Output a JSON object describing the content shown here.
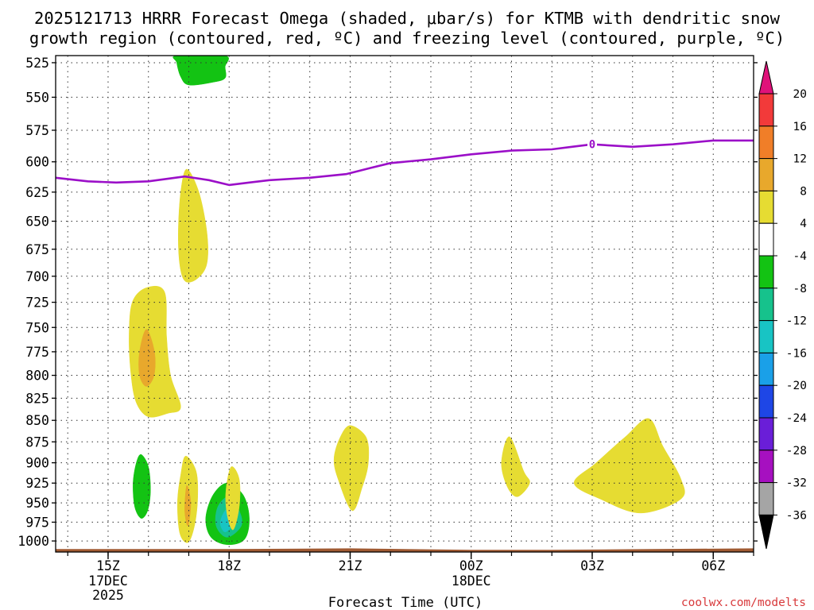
{
  "chart_data": {
    "type": "time-height cross section (shaded contour)",
    "title_line1": "2025121713 HRRR Forecast Omega (shaded, μbar/s) for KTMB with dendritic snow",
    "title_line2": "growth region (contoured, red, ºC) and freezing level (contoured, purple, ºC)",
    "xlabel": "Forecast Time (UTC)",
    "credit": "coolwx.com/modelts",
    "xlim_hours": [
      13.7,
      31.0
    ],
    "ylim_hPa": [
      1015,
      520
    ],
    "y_ticks": [
      525,
      550,
      575,
      600,
      625,
      650,
      675,
      700,
      725,
      750,
      775,
      800,
      825,
      850,
      875,
      900,
      925,
      950,
      975,
      1000
    ],
    "x_ticks": [
      {
        "hour": 15,
        "label": "15Z",
        "date_line1": "17DEC",
        "date_line2": "2025"
      },
      {
        "hour": 18,
        "label": "18Z",
        "date_line1": "",
        "date_line2": ""
      },
      {
        "hour": 21,
        "label": "21Z",
        "date_line1": "",
        "date_line2": ""
      },
      {
        "hour": 24,
        "label": "00Z",
        "date_line1": "18DEC",
        "date_line2": ""
      },
      {
        "hour": 27,
        "label": "03Z",
        "date_line1": "",
        "date_line2": ""
      },
      {
        "hour": 30,
        "label": "06Z",
        "date_line1": "",
        "date_line2": ""
      }
    ],
    "colorbar": {
      "labels": [
        "20",
        "16",
        "12",
        "8",
        "4",
        "-4",
        "-8",
        "-12",
        "-16",
        "-20",
        "-24",
        "-28",
        "-32",
        "-36"
      ],
      "bins": [
        {
          "lo": 20,
          "hi": null,
          "color": "#e0127a"
        },
        {
          "lo": 16,
          "hi": 20,
          "color": "#f23a3a"
        },
        {
          "lo": 12,
          "hi": 16,
          "color": "#f07e28"
        },
        {
          "lo": 8,
          "hi": 12,
          "color": "#e8a82c"
        },
        {
          "lo": 4,
          "hi": 8,
          "color": "#e6dc32"
        },
        {
          "lo": -4,
          "hi": 4,
          "color": "#ffffff"
        },
        {
          "lo": -8,
          "hi": -4,
          "color": "#13c313"
        },
        {
          "lo": -12,
          "hi": -8,
          "color": "#16c28c"
        },
        {
          "lo": -16,
          "hi": -12,
          "color": "#18c4c4"
        },
        {
          "lo": -20,
          "hi": -16,
          "color": "#1aa0e8"
        },
        {
          "lo": -24,
          "hi": -20,
          "color": "#1e46e6"
        },
        {
          "lo": -28,
          "hi": -24,
          "color": "#6a1ed8"
        },
        {
          "lo": -32,
          "hi": -28,
          "color": "#a610c0"
        },
        {
          "lo": -36,
          "hi": -32,
          "color": "#a5a5a5"
        },
        {
          "lo": null,
          "hi": -36,
          "color": "#000000"
        }
      ]
    },
    "freezing_level": {
      "label": "0",
      "label_hour": 27.0,
      "color": "#9b0fc8",
      "points": [
        {
          "hour": 13.7,
          "hPa": 613
        },
        {
          "hour": 14.5,
          "hPa": 616
        },
        {
          "hour": 15.2,
          "hPa": 617
        },
        {
          "hour": 16.0,
          "hPa": 616
        },
        {
          "hour": 16.9,
          "hPa": 612
        },
        {
          "hour": 17.5,
          "hPa": 615
        },
        {
          "hour": 18.0,
          "hPa": 619
        },
        {
          "hour": 18.5,
          "hPa": 617
        },
        {
          "hour": 19.0,
          "hPa": 615
        },
        {
          "hour": 20.0,
          "hPa": 613
        },
        {
          "hour": 20.9,
          "hPa": 610
        },
        {
          "hour": 21.5,
          "hPa": 605
        },
        {
          "hour": 22.0,
          "hPa": 601
        },
        {
          "hour": 23.0,
          "hPa": 598
        },
        {
          "hour": 24.0,
          "hPa": 594
        },
        {
          "hour": 25.0,
          "hPa": 591
        },
        {
          "hour": 26.0,
          "hPa": 590
        },
        {
          "hour": 26.5,
          "hPa": 588
        },
        {
          "hour": 27.0,
          "hPa": 586
        },
        {
          "hour": 27.5,
          "hPa": 587
        },
        {
          "hour": 28.0,
          "hPa": 588
        },
        {
          "hour": 29.0,
          "hPa": 586
        },
        {
          "hour": 30.0,
          "hPa": 583
        },
        {
          "hour": 31.0,
          "hPa": 583
        }
      ]
    },
    "omega_regions": [
      {
        "name": "green-top",
        "color": "#13c313",
        "range": "-8 to -4",
        "points": [
          [
            16.7,
            520
          ],
          [
            17.9,
            520
          ],
          [
            17.9,
            528
          ],
          [
            17.9,
            536
          ],
          [
            17.6,
            539
          ],
          [
            17.0,
            541
          ],
          [
            16.8,
            535
          ],
          [
            16.7,
            525
          ]
        ]
      },
      {
        "name": "yellow-mid",
        "color": "#e6dc32",
        "range": "4 to 8",
        "points": [
          [
            16.95,
            606
          ],
          [
            17.25,
            625
          ],
          [
            17.45,
            660
          ],
          [
            17.45,
            688
          ],
          [
            17.22,
            702
          ],
          [
            16.92,
            705
          ],
          [
            16.78,
            690
          ],
          [
            16.74,
            660
          ],
          [
            16.8,
            625
          ]
        ]
      },
      {
        "name": "yellow-left",
        "color": "#e6dc32",
        "range": "4 to 8",
        "points": [
          [
            15.95,
            711
          ],
          [
            16.4,
            715
          ],
          [
            16.45,
            760
          ],
          [
            16.55,
            800
          ],
          [
            16.8,
            835
          ],
          [
            16.48,
            842
          ],
          [
            16.0,
            846
          ],
          [
            15.7,
            830
          ],
          [
            15.57,
            800
          ],
          [
            15.52,
            760
          ],
          [
            15.6,
            725
          ]
        ]
      },
      {
        "name": "orange-left",
        "color": "#e8a82c",
        "range": "8 to 12",
        "points": [
          [
            15.95,
            752
          ],
          [
            16.15,
            775
          ],
          [
            16.14,
            800
          ],
          [
            15.95,
            812
          ],
          [
            15.78,
            800
          ],
          [
            15.78,
            775
          ]
        ]
      },
      {
        "name": "green-lower-left",
        "color": "#13c313",
        "range": "-8 to -4",
        "points": [
          [
            15.82,
            890
          ],
          [
            16.0,
            905
          ],
          [
            16.05,
            935
          ],
          [
            15.98,
            960
          ],
          [
            15.82,
            970
          ],
          [
            15.66,
            955
          ],
          [
            15.62,
            925
          ],
          [
            15.7,
            900
          ]
        ]
      },
      {
        "name": "yellow-lower",
        "color": "#e6dc32",
        "range": "4 to 8",
        "points": [
          [
            16.92,
            892
          ],
          [
            17.18,
            910
          ],
          [
            17.22,
            945
          ],
          [
            17.14,
            980
          ],
          [
            16.98,
            1002
          ],
          [
            16.78,
            990
          ],
          [
            16.72,
            950
          ],
          [
            16.8,
            915
          ]
        ]
      },
      {
        "name": "orange-lower",
        "color": "#e8a82c",
        "range": "8 to 12",
        "points": [
          [
            16.95,
            928
          ],
          [
            17.05,
            950
          ],
          [
            16.98,
            980
          ],
          [
            16.9,
            960
          ]
        ]
      },
      {
        "name": "green-low",
        "color": "#13c313",
        "range": "-8 to -4",
        "points": [
          [
            17.95,
            925
          ],
          [
            18.35,
            940
          ],
          [
            18.5,
            970
          ],
          [
            18.38,
            998
          ],
          [
            17.95,
            1005
          ],
          [
            17.55,
            995
          ],
          [
            17.42,
            970
          ],
          [
            17.6,
            940
          ]
        ]
      },
      {
        "name": "teal-low",
        "color": "#16c28c",
        "range": "-12 to -8",
        "points": [
          [
            18.0,
            942
          ],
          [
            18.25,
            960
          ],
          [
            18.3,
            980
          ],
          [
            17.95,
            995
          ],
          [
            17.68,
            980
          ],
          [
            17.72,
            955
          ]
        ]
      },
      {
        "name": "cyan-low",
        "color": "#18c4c4",
        "range": "-16 to -12",
        "points": [
          [
            17.95,
            958
          ],
          [
            18.12,
            975
          ],
          [
            17.9,
            988
          ],
          [
            17.78,
            975
          ]
        ]
      },
      {
        "name": "yellow-18z",
        "color": "#e6dc32",
        "range": "4 to 8",
        "points": [
          [
            18.05,
            905
          ],
          [
            18.25,
            920
          ],
          [
            18.25,
            955
          ],
          [
            18.1,
            985
          ],
          [
            17.95,
            965
          ],
          [
            17.92,
            935
          ]
        ]
      },
      {
        "name": "yellow-21z",
        "color": "#e6dc32",
        "range": "4 to 8",
        "points": [
          [
            21.0,
            856
          ],
          [
            21.4,
            870
          ],
          [
            21.45,
            900
          ],
          [
            21.3,
            930
          ],
          [
            21.05,
            960
          ],
          [
            20.7,
            920
          ],
          [
            20.6,
            895
          ],
          [
            20.75,
            870
          ]
        ]
      },
      {
        "name": "yellow-01z",
        "color": "#e6dc32",
        "range": "4 to 8",
        "points": [
          [
            24.95,
            869
          ],
          [
            25.3,
            910
          ],
          [
            25.45,
            925
          ],
          [
            25.15,
            942
          ],
          [
            24.9,
            930
          ],
          [
            24.75,
            900
          ]
        ]
      },
      {
        "name": "yellow-04z",
        "color": "#e6dc32",
        "range": "4 to 8",
        "points": [
          [
            28.4,
            848
          ],
          [
            28.75,
            880
          ],
          [
            29.2,
            920
          ],
          [
            29.2,
            945
          ],
          [
            28.2,
            963
          ],
          [
            27.2,
            945
          ],
          [
            26.55,
            925
          ],
          [
            27.1,
            900
          ],
          [
            27.8,
            870
          ]
        ]
      }
    ],
    "ground": {
      "color": "#a05a32",
      "points": [
        [
          13.7,
          1011
        ],
        [
          18.0,
          1011
        ],
        [
          21.0,
          1010
        ],
        [
          24.0,
          1012
        ],
        [
          26.0,
          1012
        ],
        [
          28.5,
          1011
        ],
        [
          31.0,
          1010
        ]
      ]
    }
  }
}
